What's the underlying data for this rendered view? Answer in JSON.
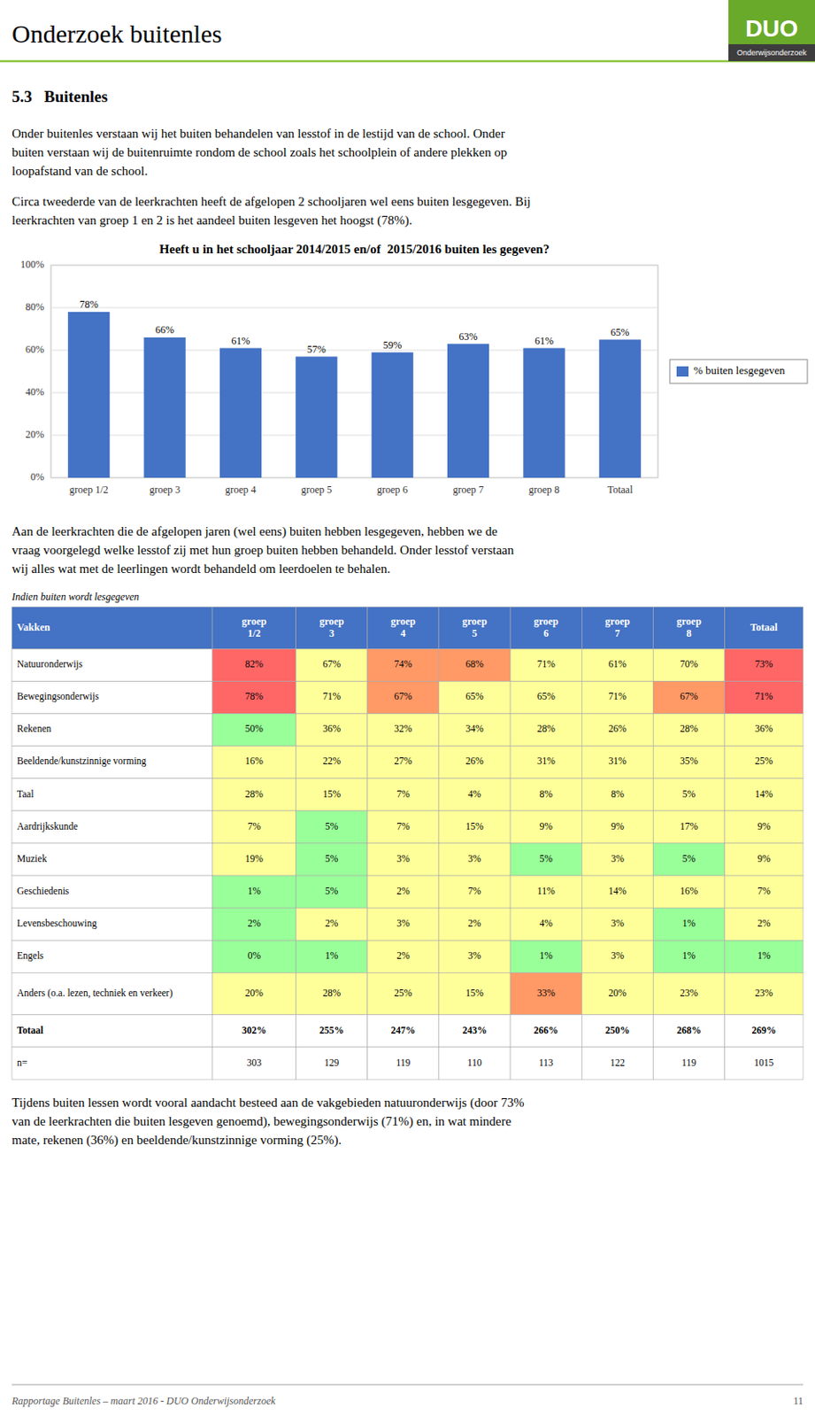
{
  "page": {
    "header_title": "Onderzoek buitenles",
    "logo_title": "DUO",
    "logo_subtitle": "Onderwijsonderzoek",
    "logo_color": "#6aaa2a",
    "logo_dark_color": "#3d3d3d",
    "header_line_color": "#8dc63f",
    "section_title": "5.3   Buitenles",
    "intro": [
      [
        "Onder buitenles verstaan wij het buiten behandelen van lesstof in de lestijd van de school. Onder",
        "buiten verstaan wij de buitenruimte rondom de school zoals het schoolplein of andere plekken op",
        "loopafstand van de school."
      ],
      [
        "Circa tweederde van de leerkrachten heeft de afgelopen 2 schooljaren wel eens buiten lesgegeven. Bij",
        "leerkrachten van groep 1 en 2 is het aandeel buiten lesgeven het hoogst (78%)."
      ]
    ],
    "chart_intro": [
      "Aan de leerkrachten die de afgelopen jaren (wel eens) buiten hebben lesgegeven, hebben we de",
      "vraag voorgelegd welke lesstof zij met hun groep buiten hebben behandeld. Onder lesstof verstaan",
      "wij alles wat met de leerlingen wordt behandeld om leerdoelen te behalen."
    ],
    "table_note": "Indien buiten wordt lesgegeven",
    "conclusion": [
      "Tijdens buiten lessen wordt vooral aandacht besteed aan de vakgebieden natuuronderwijs (door 73%",
      "van de leerkrachten die buiten lesgeven genoemd), bewegingsonderwijs (71%) en, in wat mindere",
      "mate, rekenen (36%) en beeldende/kunstzinnige vorming (25%)."
    ],
    "footer": "Rapportage Buitenles – maart 2016 - DUO Onderwijsonderzoek",
    "page_number": "11"
  },
  "chart_data": [
    {
      "type": "bar",
      "title": "Heeft u in het schooljaar 2014/2015 en/of  2015/2016 buiten les gegeven?",
      "categories": [
        "groep 1/2",
        "groep 3",
        "groep 4",
        "groep 5",
        "groep 6",
        "groep 7",
        "groep 8",
        "Totaal"
      ],
      "series": [
        {
          "name": "% buiten lesgegeven",
          "color": "#4472C4",
          "values": [
            78,
            66,
            61,
            57,
            59,
            63,
            61,
            65
          ],
          "value_labels": [
            "78%",
            "66%",
            "61%",
            "57%",
            "59%",
            "63%",
            "61%",
            "65%"
          ]
        }
      ],
      "ylim": [
        0,
        100
      ],
      "yticks": [
        {
          "value": 0,
          "label": "0%"
        },
        {
          "value": 20,
          "label": "20%"
        },
        {
          "value": 40,
          "label": "40%"
        },
        {
          "value": 60,
          "label": "60%"
        },
        {
          "value": 80,
          "label": "80%"
        },
        {
          "value": 100,
          "label": "100%"
        }
      ],
      "grid": true,
      "legend": "right",
      "data_labels": true
    },
    {
      "type": "table",
      "row_header": "Vakken",
      "header_color": "#4472C4",
      "columns": [
        "groep\n1/2",
        "groep\n3",
        "groep\n4",
        "groep\n5",
        "groep\n6",
        "groep\n7",
        "groep\n8",
        "Totaal"
      ],
      "rows": [
        "Natuuronderwijs",
        "Bewegingsonderwijs",
        "Rekenen",
        "Beeldende/kunstzinnige vorming",
        "Taal",
        "Aardrijkskunde",
        "Muziek",
        "Geschiedenis",
        "Levensbeschouwing",
        "Engels",
        "Anders (o.a. lezen, techniek en verkeer)",
        "Totaal",
        "n="
      ],
      "values": [
        [
          82,
          67,
          74,
          68,
          71,
          61,
          70,
          73
        ],
        [
          78,
          71,
          67,
          65,
          65,
          71,
          67,
          71
        ],
        [
          50,
          36,
          32,
          34,
          28,
          26,
          28,
          36
        ],
        [
          16,
          22,
          27,
          26,
          31,
          31,
          35,
          25
        ],
        [
          28,
          15,
          7,
          4,
          8,
          8,
          5,
          14
        ],
        [
          7,
          5,
          7,
          15,
          9,
          9,
          17,
          9
        ],
        [
          19,
          5,
          3,
          3,
          5,
          3,
          5,
          9
        ],
        [
          1,
          5,
          2,
          7,
          11,
          14,
          16,
          7
        ],
        [
          2,
          2,
          3,
          2,
          4,
          3,
          1,
          2
        ],
        [
          0,
          1,
          2,
          3,
          1,
          3,
          1,
          1
        ],
        [
          20,
          28,
          25,
          15,
          33,
          20,
          23,
          23
        ],
        [
          302,
          255,
          247,
          243,
          266,
          250,
          268,
          269
        ],
        [
          303,
          129,
          119,
          110,
          113,
          122,
          119,
          1015
        ]
      ],
      "value_labels": [
        [
          "82%",
          "67%",
          "74%",
          "68%",
          "71%",
          "61%",
          "70%",
          "73%"
        ],
        [
          "78%",
          "71%",
          "67%",
          "65%",
          "65%",
          "71%",
          "67%",
          "71%"
        ],
        [
          "50%",
          "36%",
          "32%",
          "34%",
          "28%",
          "26%",
          "28%",
          "36%"
        ],
        [
          "16%",
          "22%",
          "27%",
          "26%",
          "31%",
          "31%",
          "35%",
          "25%"
        ],
        [
          "28%",
          "15%",
          "7%",
          "4%",
          "8%",
          "8%",
          "5%",
          "14%"
        ],
        [
          "7%",
          "5%",
          "7%",
          "15%",
          "9%",
          "9%",
          "17%",
          "9%"
        ],
        [
          "19%",
          "5%",
          "3%",
          "3%",
          "5%",
          "3%",
          "5%",
          "9%"
        ],
        [
          "1%",
          "5%",
          "2%",
          "7%",
          "11%",
          "14%",
          "16%",
          "7%"
        ],
        [
          "2%",
          "2%",
          "3%",
          "2%",
          "4%",
          "3%",
          "1%",
          "2%"
        ],
        [
          "0%",
          "1%",
          "2%",
          "3%",
          "1%",
          "3%",
          "1%",
          "1%"
        ],
        [
          "20%",
          "28%",
          "25%",
          "15%",
          "33%",
          "20%",
          "23%",
          "23%"
        ],
        [
          "302%",
          "255%",
          "247%",
          "243%",
          "266%",
          "250%",
          "268%",
          "269%"
        ],
        [
          "303",
          "129",
          "119",
          "110",
          "113",
          "122",
          "119",
          "1015"
        ]
      ],
      "colors": [
        [
          "#FF6666",
          "#FFFF99",
          "#FF9966",
          "#FF9966",
          "#FFFF99",
          "#FFFF99",
          "#FFFF99",
          "#FF6666"
        ],
        [
          "#FF6666",
          "#FFFF99",
          "#FF9966",
          "#FFFF99",
          "#FFFF99",
          "#FFFF99",
          "#FF9966",
          "#FF6666"
        ],
        [
          "#99FF99",
          "#FFFF99",
          "#FFFF99",
          "#FFFF99",
          "#FFFF99",
          "#FFFF99",
          "#FFFF99",
          "#FFFF99"
        ],
        [
          "#FFFF99",
          "#FFFF99",
          "#FFFF99",
          "#FFFF99",
          "#FFFF99",
          "#FFFF99",
          "#FFFF99",
          "#FFFF99"
        ],
        [
          "#FFFF99",
          "#FFFF99",
          "#FFFF99",
          "#FFFF99",
          "#FFFF99",
          "#FFFF99",
          "#FFFF99",
          "#FFFF99"
        ],
        [
          "#FFFF99",
          "#99FF99",
          "#FFFF99",
          "#FFFF99",
          "#FFFF99",
          "#FFFF99",
          "#FFFF99",
          "#FFFF99"
        ],
        [
          "#FFFF99",
          "#99FF99",
          "#FFFF99",
          "#FFFF99",
          "#99FF99",
          "#FFFF99",
          "#99FF99",
          "#FFFF99"
        ],
        [
          "#99FF99",
          "#99FF99",
          "#FFFF99",
          "#FFFF99",
          "#FFFF99",
          "#FFFF99",
          "#FFFF99",
          "#FFFF99"
        ],
        [
          "#99FF99",
          "#FFFF99",
          "#FFFF99",
          "#FFFF99",
          "#FFFF99",
          "#FFFF99",
          "#99FF99",
          "#FFFF99"
        ],
        [
          "#99FF99",
          "#99FF99",
          "#FFFF99",
          "#FFFF99",
          "#99FF99",
          "#FFFF99",
          "#99FF99",
          "#99FF99"
        ],
        [
          "#FFFF99",
          "#FFFF99",
          "#FFFF99",
          "#FFFF99",
          "#FF9966",
          "#FFFF99",
          "#FFFF99",
          "#FFFF99"
        ],
        [
          "#ffffff",
          "#ffffff",
          "#ffffff",
          "#ffffff",
          "#ffffff",
          "#ffffff",
          "#ffffff",
          "#ffffff"
        ],
        [
          "#ffffff",
          "#ffffff",
          "#ffffff",
          "#ffffff",
          "#ffffff",
          "#ffffff",
          "#ffffff",
          "#ffffff"
        ]
      ]
    }
  ]
}
